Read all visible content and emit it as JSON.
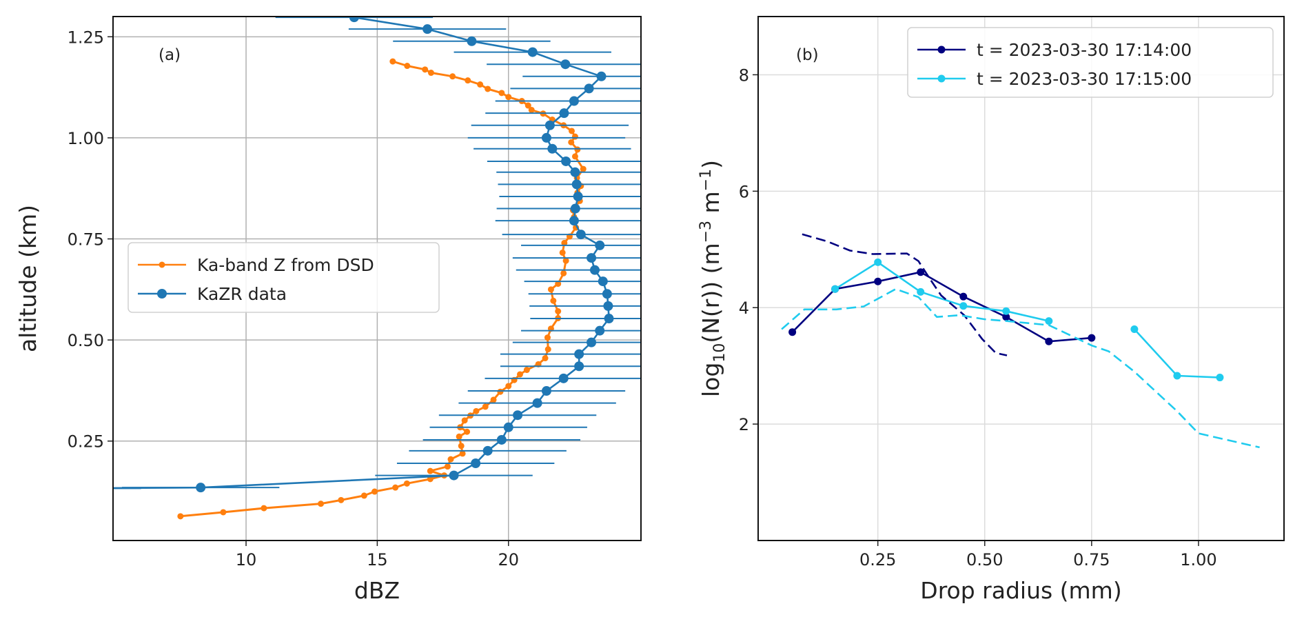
{
  "chart_data": [
    {
      "type": "line",
      "panel_label": "(a)",
      "xlabel": "dBZ",
      "ylabel": "altitude (km)",
      "xlim": [
        4.93,
        25.05
      ],
      "ylim": [
        0.004,
        1.3
      ],
      "xticks": [
        10,
        15,
        20
      ],
      "xtick_labels": [
        "10",
        "15",
        "20"
      ],
      "yticks": [
        0.25,
        0.5,
        0.75,
        1.0,
        1.25
      ],
      "ytick_labels": [
        "0.25",
        "0.50",
        "0.75",
        "1.00",
        "1.25"
      ],
      "grid": true,
      "legend": "center-left",
      "series": [
        {
          "name": "Ka-band Z from DSD",
          "color": "#ff7f0e",
          "x": [
            15.59,
            16.14,
            16.82,
            17.05,
            17.87,
            18.45,
            18.92,
            19.21,
            19.74,
            20.0,
            20.51,
            20.75,
            20.88,
            21.32,
            21.67,
            22.1,
            22.41,
            22.54,
            22.39,
            22.63,
            22.54,
            22.85,
            22.61,
            22.76,
            22.63,
            22.72,
            22.46,
            22.5,
            22.57,
            22.33,
            22.13,
            22.06,
            22.19,
            22.1,
            21.89,
            21.62,
            21.71,
            21.89,
            21.89,
            21.62,
            21.49,
            21.51,
            21.4,
            21.14,
            20.7,
            20.44,
            20.22,
            20.0,
            19.69,
            19.43,
            19.12,
            18.77,
            18.55,
            18.33,
            18.16,
            18.42,
            18.12,
            18.2,
            18.25,
            17.8,
            17.68,
            17.02,
            17.55,
            17.02,
            16.13,
            15.69,
            14.9,
            14.5,
            13.62,
            12.85,
            10.68,
            9.13,
            7.5
          ],
          "y": [
            1.189,
            1.178,
            1.169,
            1.161,
            1.152,
            1.142,
            1.132,
            1.121,
            1.111,
            1.101,
            1.091,
            1.08,
            1.069,
            1.06,
            1.045,
            1.031,
            1.017,
            1.003,
            0.989,
            0.971,
            0.954,
            0.923,
            0.901,
            0.881,
            0.864,
            0.844,
            0.821,
            0.804,
            0.778,
            0.756,
            0.74,
            0.716,
            0.696,
            0.665,
            0.639,
            0.625,
            0.597,
            0.571,
            0.554,
            0.528,
            0.506,
            0.477,
            0.455,
            0.44,
            0.426,
            0.415,
            0.401,
            0.386,
            0.372,
            0.352,
            0.335,
            0.324,
            0.313,
            0.301,
            0.284,
            0.273,
            0.261,
            0.238,
            0.219,
            0.205,
            0.187,
            0.176,
            0.165,
            0.156,
            0.145,
            0.135,
            0.125,
            0.115,
            0.104,
            0.095,
            0.084,
            0.074,
            0.064
          ]
        },
        {
          "name": "KaZR data",
          "color": "#1f77b4",
          "xerr": 3.0,
          "x": [
            14.12,
            16.91,
            18.6,
            20.92,
            22.17,
            23.54,
            23.07,
            22.5,
            22.12,
            21.58,
            21.45,
            21.67,
            22.19,
            22.54,
            22.6,
            22.65,
            22.55,
            22.5,
            22.76,
            23.48,
            23.16,
            23.29,
            23.6,
            23.76,
            23.8,
            23.83,
            23.48,
            23.16,
            22.69,
            22.69,
            22.1,
            21.45,
            21.1,
            20.35,
            20.0,
            19.74,
            19.21,
            18.75,
            17.92,
            8.27,
            3.0
          ],
          "y": [
            1.298,
            1.269,
            1.239,
            1.212,
            1.182,
            1.152,
            1.122,
            1.091,
            1.061,
            1.031,
            1.0,
            0.973,
            0.942,
            0.915,
            0.885,
            0.855,
            0.825,
            0.795,
            0.761,
            0.734,
            0.703,
            0.673,
            0.645,
            0.614,
            0.584,
            0.553,
            0.523,
            0.494,
            0.465,
            0.435,
            0.405,
            0.374,
            0.344,
            0.314,
            0.284,
            0.253,
            0.226,
            0.195,
            0.165,
            0.135,
            0.133
          ]
        }
      ]
    },
    {
      "type": "line",
      "panel_label": "(b)",
      "xlabel": "Drop radius (mm)",
      "ylabel": {
        "base": "log",
        "sub": "10",
        "mid": "(N(r)) (m",
        "sup1": "−3",
        "mid2": " m",
        "sup2": "−1",
        "end": ")"
      },
      "xlim": [
        -0.03,
        1.2
      ],
      "ylim": [
        0,
        9.0
      ],
      "xticks": [
        0.25,
        0.5,
        0.75,
        1.0
      ],
      "xtick_labels": [
        "0.25",
        "0.50",
        "0.75",
        "1.00"
      ],
      "yticks": [
        2,
        4,
        6,
        8
      ],
      "ytick_labels": [
        "2",
        "4",
        "6",
        "8"
      ],
      "grid": true,
      "legend": "top-right",
      "series": [
        {
          "name": "t = 2023-03-30 17:14:00",
          "color": "#000080",
          "style": "solid",
          "x": [
            0.05,
            0.15,
            0.25,
            0.35,
            0.45,
            0.55,
            0.65,
            0.75
          ],
          "y": [
            3.58,
            4.32,
            4.45,
            4.61,
            4.19,
            3.84,
            3.42,
            3.48
          ]
        },
        {
          "name": "t = 2023-03-30 17:15:00",
          "color": "#1fcbee",
          "style": "solid",
          "x": [
            0.15,
            0.25,
            0.35,
            0.45,
            0.55,
            0.65,
            0.75,
            0.85,
            0.95,
            1.05
          ],
          "y": [
            4.32,
            4.78,
            4.27,
            4.03,
            3.94,
            3.77,
            null,
            3.63,
            2.83,
            2.8
          ]
        },
        {
          "color": "#000080",
          "style": "dashed",
          "x": [
            0.073,
            0.131,
            0.185,
            0.238,
            0.318,
            0.345,
            0.372,
            0.398,
            0.452,
            0.494,
            0.526,
            0.552
          ],
          "y": [
            5.26,
            5.14,
            4.98,
            4.92,
            4.93,
            4.8,
            4.49,
            4.21,
            3.87,
            3.46,
            3.22,
            3.18
          ]
        },
        {
          "color": "#1fcbee",
          "style": "dashed",
          "x": [
            0.025,
            0.078,
            0.153,
            0.217,
            0.292,
            0.345,
            0.388,
            0.441,
            0.5,
            0.55,
            0.65,
            0.75,
            0.79,
            0.85,
            0.95,
            1.0,
            1.143
          ],
          "y": [
            3.63,
            3.97,
            3.97,
            4.02,
            4.32,
            4.18,
            3.84,
            3.87,
            3.8,
            3.77,
            3.7,
            3.35,
            3.25,
            2.9,
            2.22,
            1.84,
            1.6
          ]
        }
      ]
    }
  ]
}
